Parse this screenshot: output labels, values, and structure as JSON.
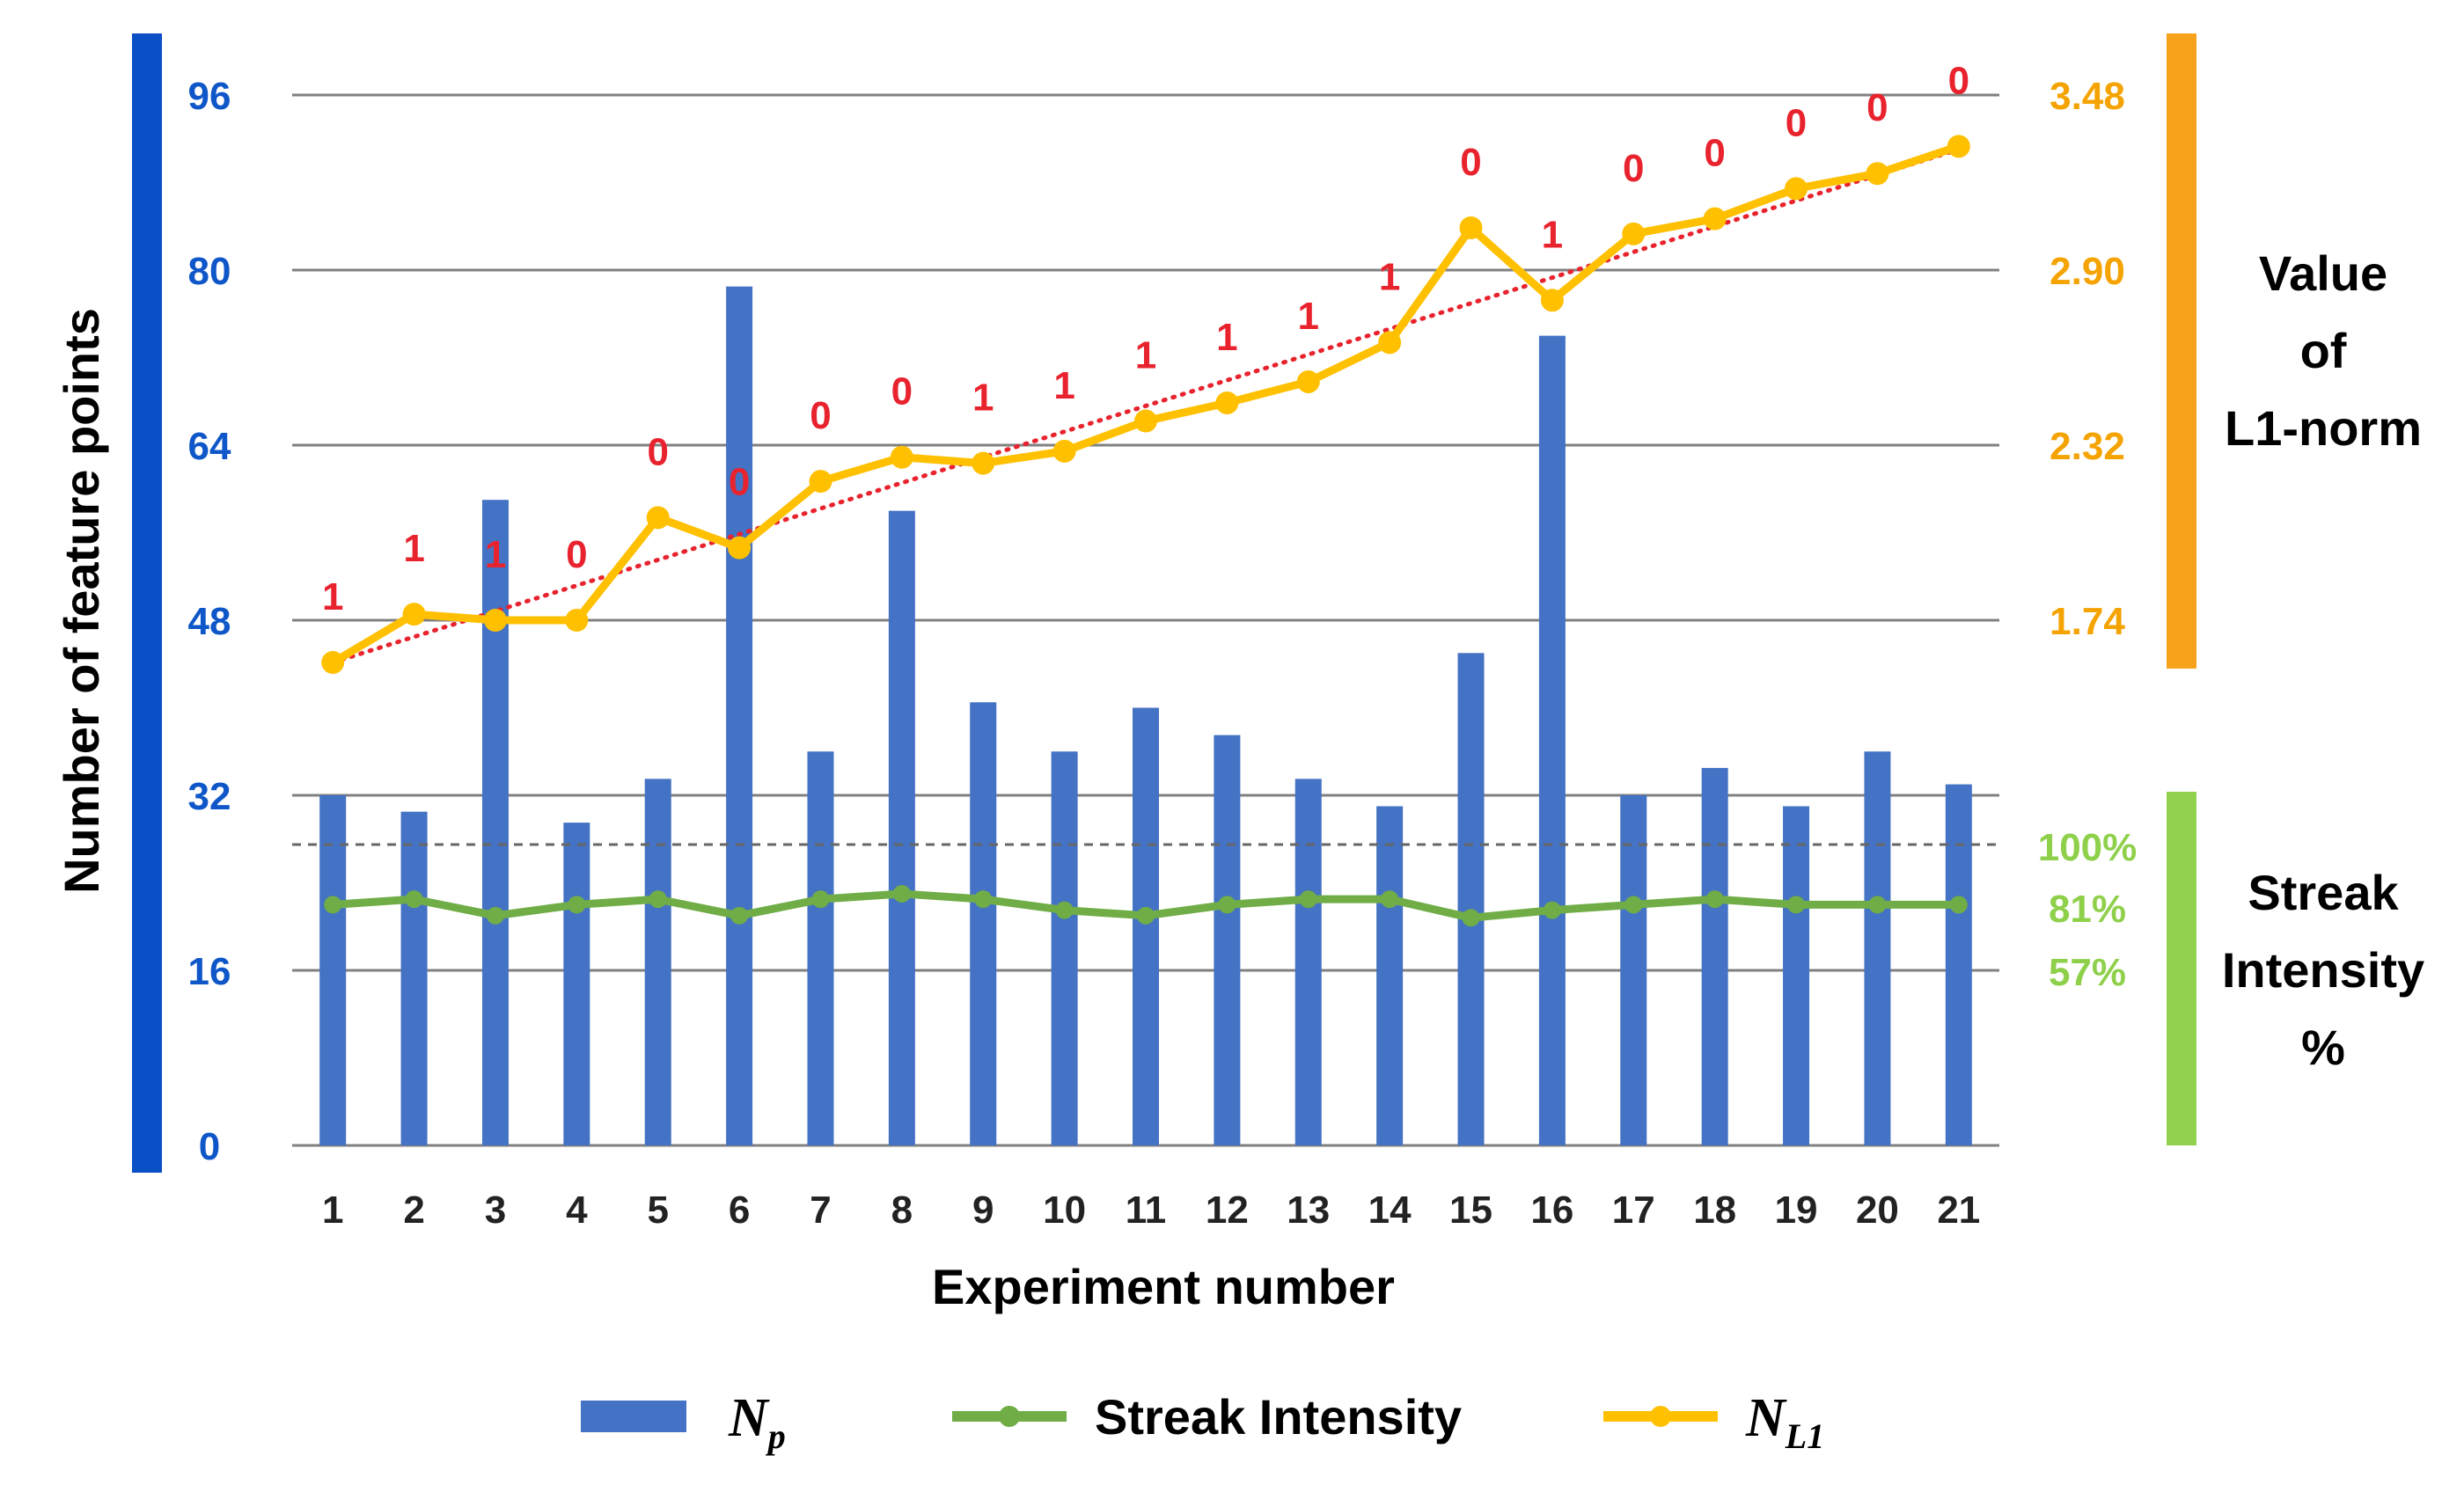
{
  "chart_data": {
    "type": "bar+line",
    "x": [
      1,
      2,
      3,
      4,
      5,
      6,
      7,
      8,
      9,
      10,
      11,
      12,
      13,
      14,
      15,
      16,
      17,
      18,
      19,
      20,
      21
    ],
    "xlabel": "Experiment number",
    "ylabel": "Number of feature points",
    "ylim": [
      0,
      96
    ],
    "yticks": [
      "0",
      "16",
      "32",
      "48",
      "64",
      "80",
      "96"
    ],
    "series": [
      {
        "name": "Np",
        "type": "bar",
        "axis": "left",
        "color": "#4472C4",
        "values": [
          32,
          30.5,
          59,
          29.5,
          33.5,
          78.5,
          36,
          58,
          40.5,
          36,
          40,
          37.5,
          33.5,
          31,
          45,
          74,
          32,
          34.5,
          31,
          36,
          33
        ]
      },
      {
        "name": "Streak Intensity",
        "type": "line",
        "axis": "streak",
        "color": "#70AD47",
        "values": [
          22,
          22.5,
          21,
          22,
          22.5,
          21,
          22.5,
          23,
          22.5,
          21.5,
          21,
          22,
          22.5,
          22.5,
          20.8,
          21.5,
          22,
          22.5,
          22,
          22,
          22
        ]
      },
      {
        "name": "NL1",
        "type": "line",
        "axis": "right",
        "color": "#FFC000",
        "values": [
          1.6,
          1.76,
          1.74,
          1.74,
          2.08,
          1.98,
          2.2,
          2.28,
          2.26,
          2.3,
          2.4,
          2.46,
          2.53,
          2.66,
          3.04,
          2.8,
          3.02,
          3.07,
          3.17,
          3.22,
          3.31
        ]
      }
    ],
    "trend": {
      "name": "NL1 linear trend",
      "color": "#E8232E",
      "from": 1.6,
      "to": 3.3
    },
    "flags": [
      "1",
      "1",
      "1",
      "0",
      "0",
      "0",
      "0",
      "0",
      "1",
      "1",
      "1",
      "1",
      "1",
      "1",
      "0",
      "1",
      "0",
      "0",
      "0",
      "0",
      "0"
    ],
    "right_axis": {
      "title_lines": [
        "Value",
        "of",
        "L1-norm"
      ],
      "ticks": [
        "3.48",
        "2.90",
        "2.32",
        "1.74"
      ],
      "tick_values": [
        3.48,
        2.9,
        2.32,
        1.74
      ],
      "color": "#F5A300"
    },
    "streak_axis": {
      "title_lines": [
        "Streak",
        "Intensity",
        "%"
      ],
      "ticks": [
        "100%",
        "81%",
        "57%"
      ],
      "color": "#8FD04B"
    },
    "legend": [
      {
        "key": "np",
        "main": "N",
        "sub": "p"
      },
      {
        "key": "si",
        "main": "Streak Intensity",
        "sub": ""
      },
      {
        "key": "nl1",
        "main": "N",
        "sub": "L1"
      }
    ],
    "colors": {
      "left_bar": "#0B4FC6",
      "right_bar_top": "#F7A21B",
      "right_bar_bottom": "#92D050",
      "grid": "#808080",
      "dashed": "#666666"
    }
  }
}
